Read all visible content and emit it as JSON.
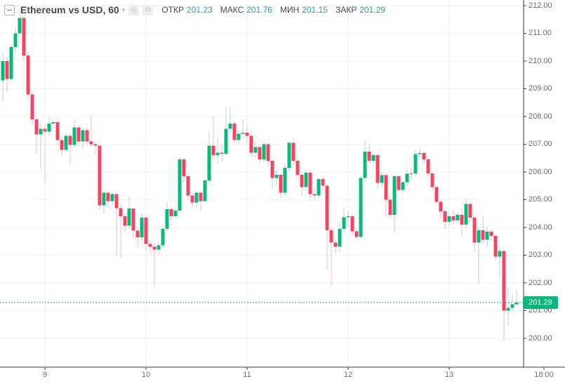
{
  "header": {
    "symbol_title": "Ethereum vs USD, 60",
    "ohlc": {
      "open_label": "ОТКР",
      "open": "201.23",
      "high_label": "МАКС",
      "high": "201.76",
      "low_label": "МИН",
      "low": "201.15",
      "close_label": "ЗАКР",
      "close": "201.29"
    },
    "icons": [
      "collapse-icon",
      "chevron-down-icon",
      "circle-icon",
      "gear-icon"
    ]
  },
  "colors": {
    "up_body": "#08b97e",
    "down_body": "#f4445f",
    "up_wick": "#b5d8d4",
    "down_wick": "#f9bcc6",
    "grid": "#eef2f8",
    "axis_line": "#363a45",
    "axis_text": "#696d76",
    "value_text": "#26a69a",
    "last_price_line": "#08b97e",
    "badge_bg": "#08b97e"
  },
  "chart_data": {
    "type": "candlestick",
    "title": "Ethereum vs USD",
    "interval": "60",
    "legend_position": "top-left",
    "grid": true,
    "last_price": "201.29",
    "y_axis": {
      "min": 198.96,
      "max": 212.2,
      "ticks": [
        "212.00",
        "211.00",
        "210.00",
        "209.00",
        "208.00",
        "207.00",
        "206.00",
        "205.00",
        "204.00",
        "203.00",
        "202.00",
        "201.00",
        "200.00"
      ]
    },
    "x_axis": {
      "labels": [
        {
          "text": "9",
          "i": 10,
          "grid": true
        },
        {
          "text": "10",
          "i": 34,
          "grid": true
        },
        {
          "text": "11",
          "i": 58,
          "grid": true
        },
        {
          "text": "12",
          "i": 82,
          "grid": true
        },
        {
          "text": "13",
          "i": 106,
          "grid": true
        },
        {
          "text": "18:00",
          "i": 128.5,
          "grid": false
        }
      ]
    },
    "candles": [
      [
        209.3,
        210.3,
        208.5,
        210.0
      ],
      [
        210.0,
        210.15,
        208.9,
        209.35
      ],
      [
        209.35,
        210.6,
        209.25,
        210.5
      ],
      [
        210.5,
        211.2,
        210.3,
        211.0
      ],
      [
        211.0,
        211.9,
        210.8,
        211.55
      ],
      [
        211.55,
        211.65,
        210.0,
        210.2
      ],
      [
        210.2,
        210.3,
        208.55,
        208.8
      ],
      [
        208.8,
        208.9,
        207.7,
        207.9
      ],
      [
        207.9,
        208.0,
        206.65,
        207.35
      ],
      [
        207.35,
        207.75,
        206.1,
        207.55
      ],
      [
        207.55,
        207.7,
        205.65,
        207.45
      ],
      [
        207.45,
        207.99,
        207.3,
        207.74
      ],
      [
        207.74,
        207.9,
        207.55,
        207.8
      ],
      [
        207.8,
        207.85,
        206.95,
        207.15
      ],
      [
        207.15,
        207.25,
        206.6,
        206.8
      ],
      [
        206.8,
        207.4,
        206.7,
        207.3
      ],
      [
        207.3,
        207.4,
        206.3,
        206.97
      ],
      [
        206.97,
        207.9,
        206.9,
        207.6
      ],
      [
        207.6,
        207.7,
        206.95,
        207.1
      ],
      [
        207.1,
        207.6,
        206.85,
        207.5
      ],
      [
        207.5,
        207.6,
        207.0,
        207.1
      ],
      [
        207.1,
        208.05,
        206.9,
        207.0
      ],
      [
        207.0,
        207.1,
        206.6,
        206.95
      ],
      [
        206.95,
        207.0,
        204.65,
        204.8
      ],
      [
        204.8,
        205.35,
        204.5,
        205.25
      ],
      [
        205.25,
        205.3,
        204.7,
        204.95
      ],
      [
        204.95,
        205.3,
        204.75,
        205.2
      ],
      [
        205.2,
        205.25,
        203.0,
        204.7
      ],
      [
        204.7,
        204.8,
        202.9,
        204.4
      ],
      [
        204.4,
        204.5,
        203.85,
        204.06
      ],
      [
        204.06,
        205.1,
        203.95,
        204.68
      ],
      [
        204.68,
        204.7,
        203.6,
        203.89
      ],
      [
        203.89,
        204.0,
        203.3,
        203.64
      ],
      [
        203.64,
        204.5,
        203.55,
        204.35
      ],
      [
        204.35,
        204.4,
        203.15,
        203.4
      ],
      [
        203.4,
        203.55,
        203.05,
        203.3
      ],
      [
        203.3,
        203.45,
        201.87,
        203.2
      ],
      [
        203.2,
        203.5,
        203.0,
        203.35
      ],
      [
        203.35,
        204.05,
        203.25,
        203.95
      ],
      [
        203.95,
        204.9,
        203.85,
        204.65
      ],
      [
        204.65,
        204.75,
        204.25,
        204.4
      ],
      [
        204.4,
        204.7,
        204.3,
        204.6
      ],
      [
        204.6,
        206.55,
        204.55,
        206.45
      ],
      [
        206.45,
        206.5,
        205.6,
        205.85
      ],
      [
        205.85,
        205.95,
        205.0,
        205.15
      ],
      [
        205.15,
        205.25,
        204.7,
        204.9
      ],
      [
        204.9,
        205.3,
        204.7,
        205.25
      ],
      [
        205.25,
        205.3,
        204.6,
        204.95
      ],
      [
        204.95,
        205.75,
        204.9,
        205.7
      ],
      [
        205.7,
        207.45,
        205.65,
        206.95
      ],
      [
        206.95,
        208.0,
        206.4,
        206.6
      ],
      [
        206.6,
        207.2,
        206.3,
        206.7
      ],
      [
        206.7,
        207.0,
        206.35,
        206.65
      ],
      [
        206.65,
        208.37,
        206.6,
        207.55
      ],
      [
        207.55,
        208.35,
        207.35,
        207.75
      ],
      [
        207.75,
        207.85,
        207.05,
        207.15
      ],
      [
        207.15,
        207.5,
        207.0,
        207.38
      ],
      [
        207.38,
        207.9,
        207.2,
        207.42
      ],
      [
        207.42,
        207.7,
        207.0,
        207.3
      ],
      [
        207.3,
        207.4,
        206.55,
        206.7
      ],
      [
        206.7,
        207.1,
        206.5,
        206.9
      ],
      [
        206.9,
        207.0,
        206.3,
        206.45
      ],
      [
        206.45,
        207.05,
        206.35,
        207.0
      ],
      [
        207.0,
        207.05,
        206.2,
        206.4
      ],
      [
        206.4,
        206.45,
        205.4,
        205.78
      ],
      [
        205.78,
        206.1,
        205.5,
        205.9
      ],
      [
        205.9,
        205.95,
        205.05,
        205.25
      ],
      [
        205.25,
        206.3,
        205.15,
        206.15
      ],
      [
        206.15,
        207.1,
        206.0,
        207.05
      ],
      [
        207.05,
        207.2,
        206.25,
        206.4
      ],
      [
        206.4,
        206.5,
        205.7,
        205.9
      ],
      [
        205.9,
        205.95,
        205.13,
        205.45
      ],
      [
        205.45,
        206.1,
        205.35,
        205.97
      ],
      [
        205.97,
        206.05,
        204.95,
        205.2
      ],
      [
        205.2,
        205.45,
        204.95,
        205.15
      ],
      [
        205.15,
        205.8,
        205.05,
        205.75
      ],
      [
        205.75,
        205.85,
        205.3,
        205.5
      ],
      [
        205.5,
        205.55,
        202.5,
        203.9
      ],
      [
        203.9,
        204.0,
        201.9,
        203.45
      ],
      [
        203.45,
        203.55,
        203.05,
        203.3
      ],
      [
        203.3,
        204.2,
        203.1,
        203.95
      ],
      [
        203.95,
        204.75,
        203.8,
        204.37
      ],
      [
        204.37,
        204.6,
        204.0,
        204.4
      ],
      [
        204.4,
        204.45,
        203.7,
        203.86
      ],
      [
        203.86,
        203.95,
        203.55,
        203.66
      ],
      [
        203.66,
        205.85,
        203.6,
        205.78
      ],
      [
        205.78,
        207.15,
        205.6,
        206.73
      ],
      [
        206.73,
        207.0,
        206.3,
        206.4
      ],
      [
        206.4,
        206.7,
        206.25,
        206.6
      ],
      [
        206.6,
        206.65,
        205.4,
        205.6
      ],
      [
        205.6,
        206.0,
        205.45,
        205.88
      ],
      [
        205.88,
        205.95,
        204.37,
        205.0
      ],
      [
        205.0,
        205.1,
        204.3,
        204.45
      ],
      [
        204.45,
        205.9,
        203.78,
        205.85
      ],
      [
        205.85,
        205.9,
        205.25,
        205.35
      ],
      [
        205.35,
        205.7,
        205.2,
        205.63
      ],
      [
        205.63,
        206.1,
        205.5,
        205.93
      ],
      [
        205.93,
        206.2,
        205.7,
        205.95
      ],
      [
        205.95,
        206.8,
        205.85,
        206.64
      ],
      [
        206.64,
        206.85,
        206.45,
        206.68
      ],
      [
        206.68,
        206.75,
        206.3,
        206.45
      ],
      [
        206.45,
        206.55,
        205.8,
        205.95
      ],
      [
        205.95,
        206.0,
        205.3,
        205.45
      ],
      [
        205.45,
        205.5,
        204.8,
        204.92
      ],
      [
        204.92,
        205.0,
        204.3,
        204.58
      ],
      [
        204.58,
        204.65,
        203.95,
        204.2
      ],
      [
        204.2,
        204.5,
        204.05,
        204.4
      ],
      [
        204.4,
        204.6,
        204.1,
        204.25
      ],
      [
        204.25,
        204.55,
        204.15,
        204.45
      ],
      [
        204.45,
        204.7,
        203.7,
        204.1
      ],
      [
        204.1,
        205.05,
        203.95,
        204.85
      ],
      [
        204.85,
        204.95,
        204.2,
        204.35
      ],
      [
        204.35,
        204.4,
        203.1,
        203.45
      ],
      [
        203.45,
        204.0,
        201.95,
        203.9
      ],
      [
        203.9,
        204.4,
        203.4,
        203.55
      ],
      [
        203.55,
        204.0,
        203.3,
        203.85
      ],
      [
        203.85,
        203.95,
        203.5,
        203.7
      ],
      [
        203.7,
        203.75,
        202.8,
        202.95
      ],
      [
        202.95,
        203.3,
        202.2,
        203.15
      ],
      [
        203.15,
        203.2,
        199.9,
        201.0
      ],
      [
        201.0,
        201.85,
        200.45,
        201.1
      ],
      [
        201.1,
        201.6,
        200.95,
        201.23
      ],
      [
        201.23,
        201.76,
        201.15,
        201.29
      ]
    ]
  }
}
